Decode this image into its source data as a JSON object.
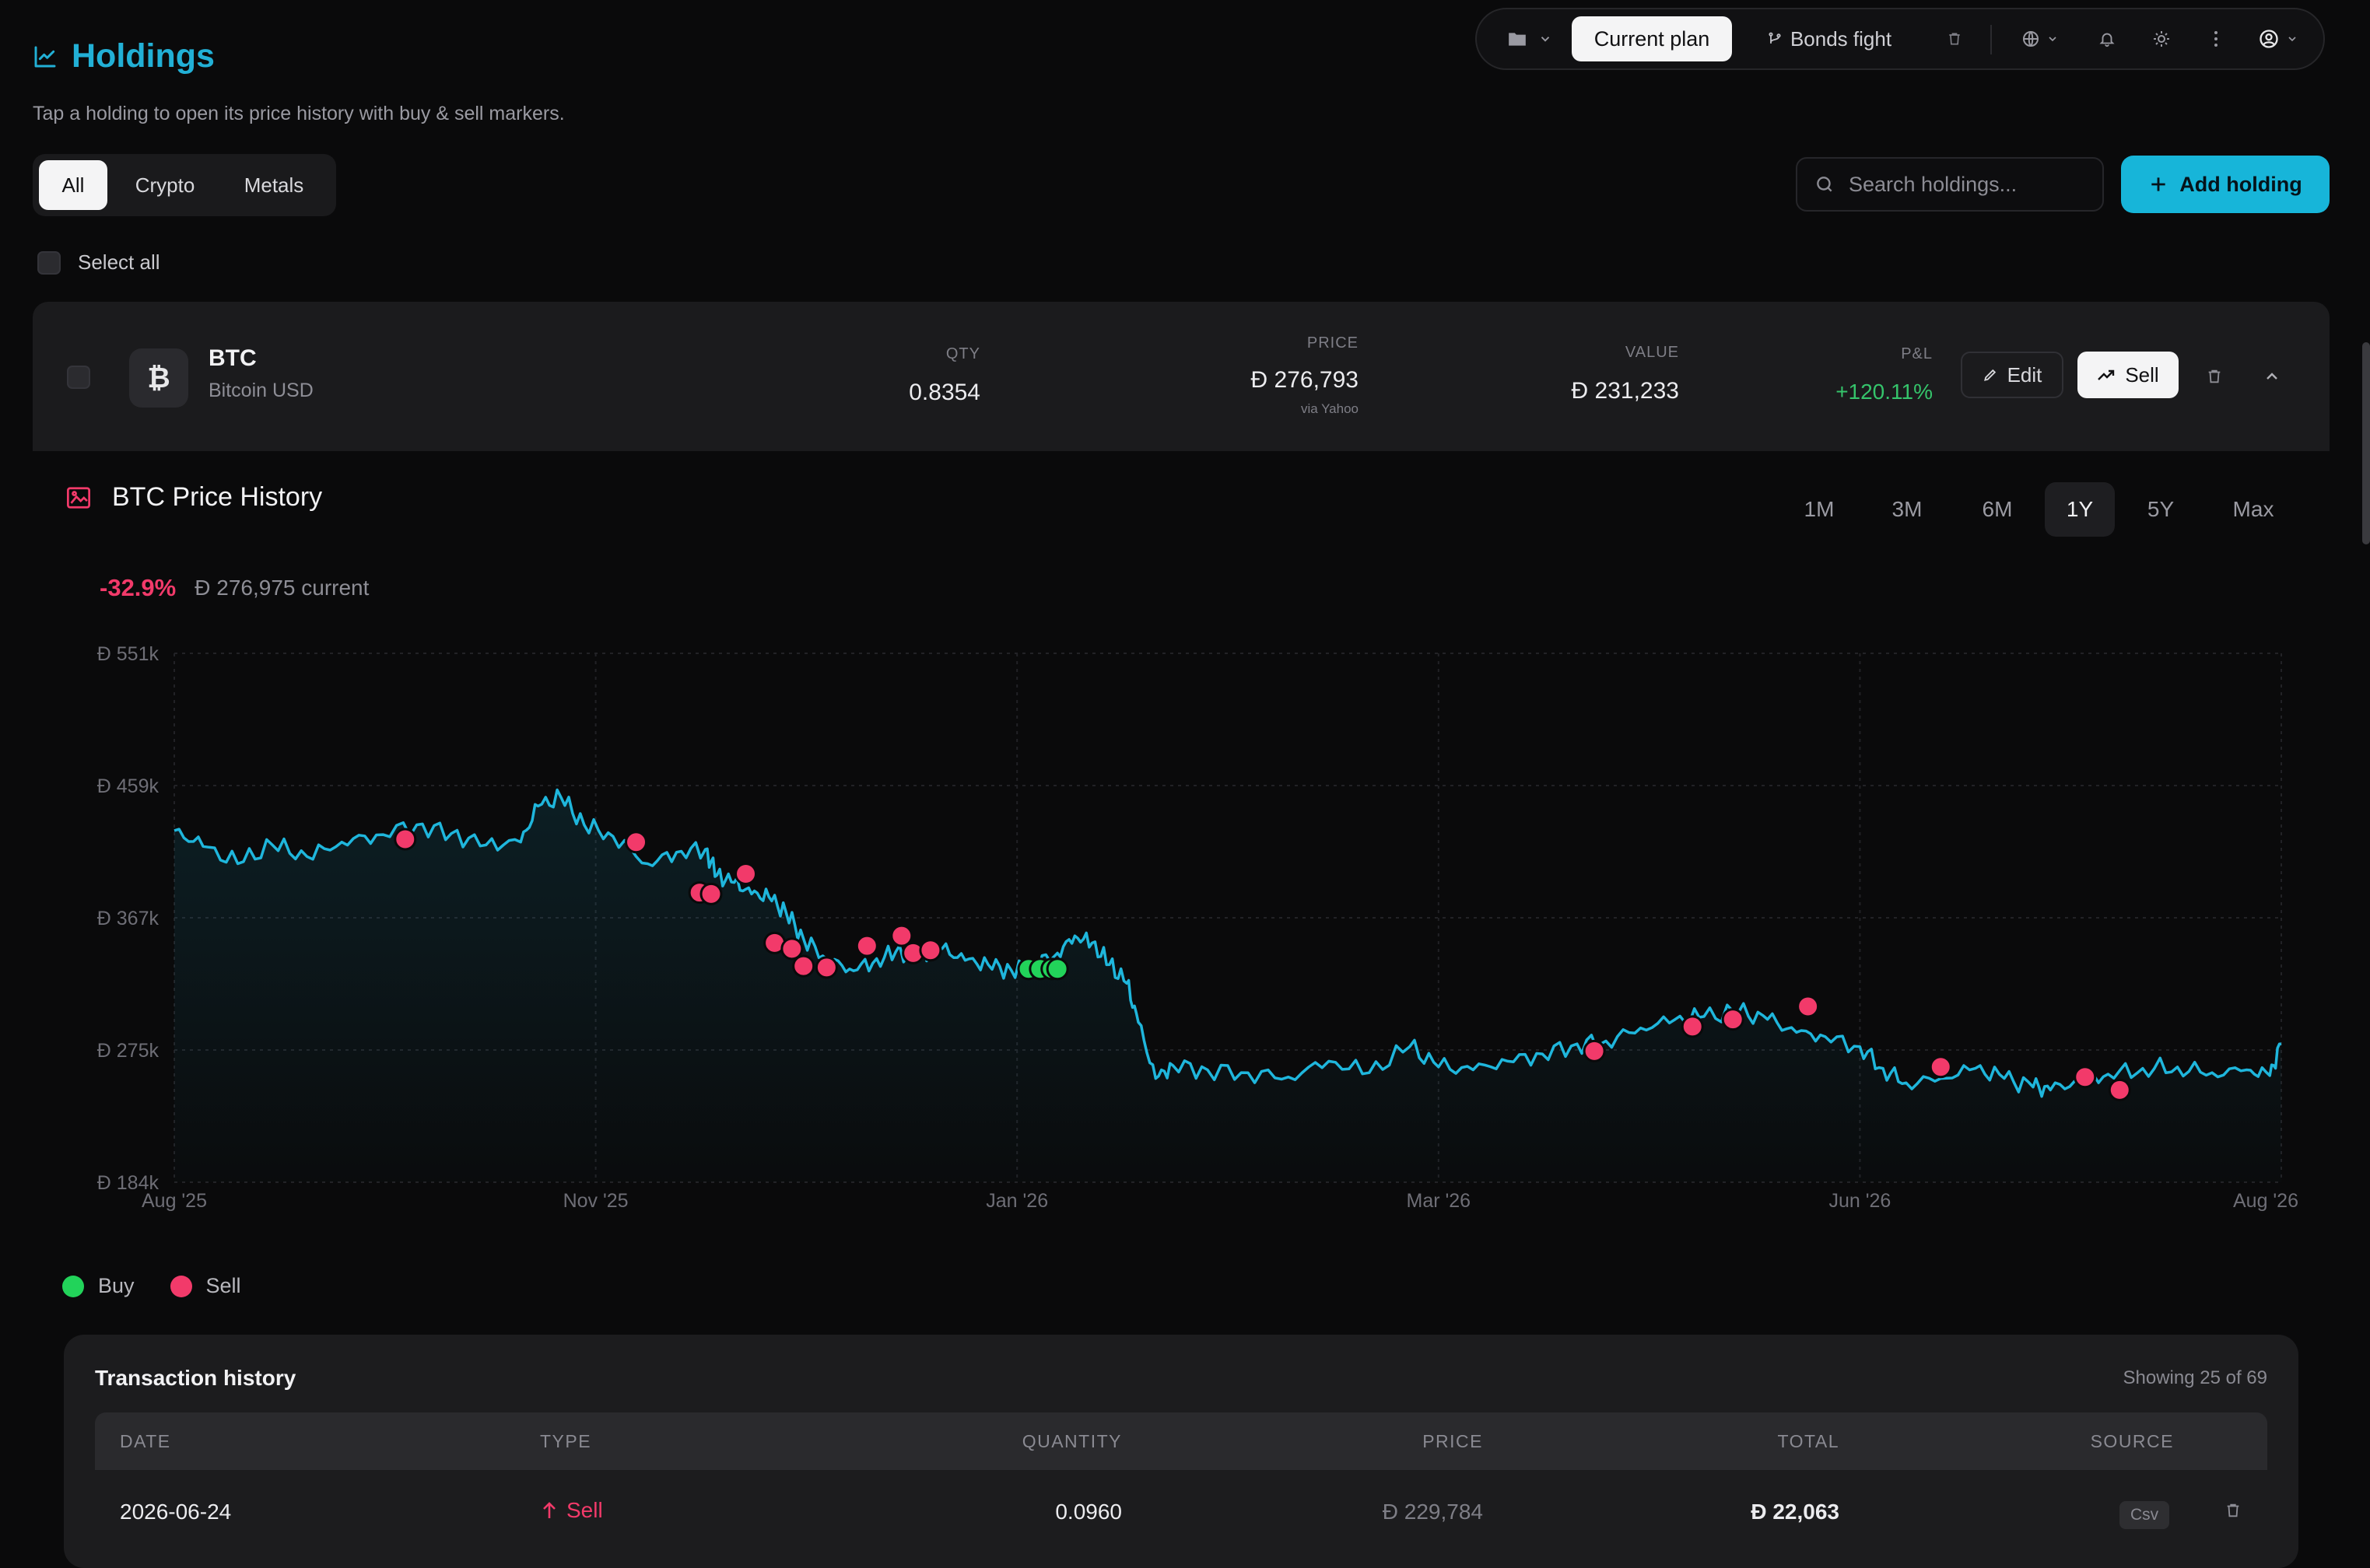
{
  "header": {
    "title": "Holdings",
    "subtitle": "Tap a holding to open its price history with buy & sell markers."
  },
  "toolbar": {
    "current_plan": "Current plan",
    "bonds_fight": "Bonds fight",
    "icons": [
      "folder-icon",
      "chevron-down-icon",
      "branch-icon",
      "trash-icon",
      "globe-icon",
      "bell-icon",
      "sun-icon",
      "more-vertical-icon",
      "user-circle-icon"
    ]
  },
  "filters": {
    "tabs": [
      "All",
      "Crypto",
      "Metals"
    ],
    "active": "All"
  },
  "search": {
    "placeholder": "Search holdings..."
  },
  "add_button": "Add holding",
  "select_all": "Select all",
  "holding": {
    "symbol": "BTC",
    "name": "Bitcoin USD",
    "coin_glyph": "₿",
    "currency_symbol": "Ɖ",
    "qty_label": "QTY",
    "qty": "0.8354",
    "price_label": "PRICE",
    "price": "276,793",
    "price_source": "via Yahoo",
    "value_label": "VALUE",
    "value": "231,233",
    "pl_label": "P&L",
    "pl": "+120.11%",
    "edit_label": "Edit",
    "sell_label": "Sell"
  },
  "chart_section": {
    "title": "BTC Price History",
    "ranges": [
      "1M",
      "3M",
      "6M",
      "1Y",
      "5Y",
      "Max"
    ],
    "active_range": "1Y",
    "change_pct": "-32.9%",
    "current_text": "276,975 current"
  },
  "chart_data": {
    "type": "area",
    "currency_symbol": "Ɖ",
    "y_ticks": [
      "551k",
      "459k",
      "367k",
      "275k",
      "184k"
    ],
    "x_ticks": [
      "Aug '25",
      "Nov '25",
      "Jan '26",
      "Mar '26",
      "Jun '26",
      "Aug '26"
    ],
    "ylim": [
      184000,
      551000
    ],
    "x_range": [
      "2025-08-01",
      "2026-08-01"
    ],
    "series_color": "#1fb6dc",
    "buy_color": "#22d35a",
    "sell_color": "#f23a6a",
    "price_points": [
      [
        "2025-08-01",
        428000
      ],
      [
        "2025-08-06",
        417000
      ],
      [
        "2025-08-12",
        405000
      ],
      [
        "2025-08-18",
        418000
      ],
      [
        "2025-08-24",
        410000
      ],
      [
        "2025-08-30",
        420000
      ],
      [
        "2025-09-05",
        425000
      ],
      [
        "2025-09-12",
        432000
      ],
      [
        "2025-09-18",
        426000
      ],
      [
        "2025-09-24",
        418000
      ],
      [
        "2025-09-30",
        420000
      ],
      [
        "2025-10-03",
        445000
      ],
      [
        "2025-10-07",
        451000
      ],
      [
        "2025-10-11",
        432000
      ],
      [
        "2025-10-16",
        424000
      ],
      [
        "2025-10-22",
        405000
      ],
      [
        "2025-10-27",
        413000
      ],
      [
        "2025-11-01",
        415000
      ],
      [
        "2025-11-03",
        397000
      ],
      [
        "2025-11-06",
        392000
      ],
      [
        "2025-11-09",
        384000
      ],
      [
        "2025-11-12",
        382000
      ],
      [
        "2025-11-15",
        371000
      ],
      [
        "2025-11-18",
        353000
      ],
      [
        "2025-11-22",
        339000
      ],
      [
        "2025-11-26",
        332000
      ],
      [
        "2025-11-30",
        336000
      ],
      [
        "2025-12-04",
        344000
      ],
      [
        "2025-12-08",
        340000
      ],
      [
        "2025-12-12",
        346000
      ],
      [
        "2025-12-16",
        338000
      ],
      [
        "2025-12-20",
        335000
      ],
      [
        "2025-12-24",
        331000
      ],
      [
        "2025-12-28",
        335000
      ],
      [
        "2026-01-01",
        343000
      ],
      [
        "2026-01-04",
        355000
      ],
      [
        "2026-01-07",
        350000
      ],
      [
        "2026-01-10",
        335000
      ],
      [
        "2026-01-13",
        322000
      ],
      [
        "2026-01-15",
        295000
      ],
      [
        "2026-01-18",
        256000
      ],
      [
        "2026-01-21",
        265000
      ],
      [
        "2026-01-27",
        262000
      ],
      [
        "2026-02-03",
        260000
      ],
      [
        "2026-02-10",
        257000
      ],
      [
        "2026-02-17",
        268000
      ],
      [
        "2026-02-24",
        260000
      ],
      [
        "2026-03-03",
        278000
      ],
      [
        "2026-03-08",
        264000
      ],
      [
        "2026-03-14",
        262000
      ],
      [
        "2026-03-20",
        268000
      ],
      [
        "2026-03-26",
        273000
      ],
      [
        "2026-04-01",
        280000
      ],
      [
        "2026-04-06",
        282000
      ],
      [
        "2026-04-12",
        291000
      ],
      [
        "2026-04-18",
        297000
      ],
      [
        "2026-04-23",
        299000
      ],
      [
        "2026-04-29",
        302000
      ],
      [
        "2026-05-04",
        297000
      ],
      [
        "2026-05-09",
        288000
      ],
      [
        "2026-05-14",
        285000
      ],
      [
        "2026-05-20",
        278000
      ],
      [
        "2026-05-24",
        263000
      ],
      [
        "2026-05-28",
        253000
      ],
      [
        "2026-06-03",
        256000
      ],
      [
        "2026-06-09",
        263000
      ],
      [
        "2026-06-14",
        256000
      ],
      [
        "2026-06-19",
        250000
      ],
      [
        "2026-06-22",
        248000
      ],
      [
        "2026-06-27",
        254000
      ],
      [
        "2026-07-02",
        259000
      ],
      [
        "2026-07-08",
        263000
      ],
      [
        "2026-07-14",
        264000
      ],
      [
        "2026-07-20",
        260000
      ],
      [
        "2026-07-26",
        262000
      ],
      [
        "2026-07-30",
        258000
      ],
      [
        "2026-08-01",
        280000
      ]
    ],
    "sell_markers": [
      [
        "2025-09-10",
        422000
      ],
      [
        "2025-10-20",
        420000
      ],
      [
        "2025-10-31",
        385000
      ],
      [
        "2025-11-02",
        384000
      ],
      [
        "2025-11-08",
        398000
      ],
      [
        "2025-11-13",
        350000
      ],
      [
        "2025-11-16",
        346000
      ],
      [
        "2025-11-18",
        334000
      ],
      [
        "2025-11-22",
        333000
      ],
      [
        "2025-11-29",
        348000
      ],
      [
        "2025-12-05",
        355000
      ],
      [
        "2025-12-07",
        343000
      ],
      [
        "2025-12-10",
        345000
      ],
      [
        "2026-04-04",
        275000
      ],
      [
        "2026-04-21",
        292000
      ],
      [
        "2026-04-28",
        297000
      ],
      [
        "2026-05-11",
        306000
      ],
      [
        "2026-06-03",
        264000
      ],
      [
        "2026-06-28",
        257000
      ],
      [
        "2026-07-04",
        248000
      ]
    ],
    "buy_markers": [
      [
        "2025-12-27",
        332000
      ],
      [
        "2025-12-29",
        332000
      ],
      [
        "2025-12-31",
        332000
      ],
      [
        "2026-01-01",
        332000
      ]
    ]
  },
  "legend": {
    "buy": "Buy",
    "sell": "Sell"
  },
  "transactions": {
    "title": "Transaction history",
    "count": "Showing 25 of 69",
    "headers": [
      "DATE",
      "TYPE",
      "QUANTITY",
      "PRICE",
      "TOTAL",
      "SOURCE"
    ],
    "rows": [
      {
        "date": "2026-06-24",
        "type": "Sell",
        "quantity": "0.0960",
        "price": "229,784",
        "total": "22,063",
        "source": "Csv"
      }
    ]
  }
}
